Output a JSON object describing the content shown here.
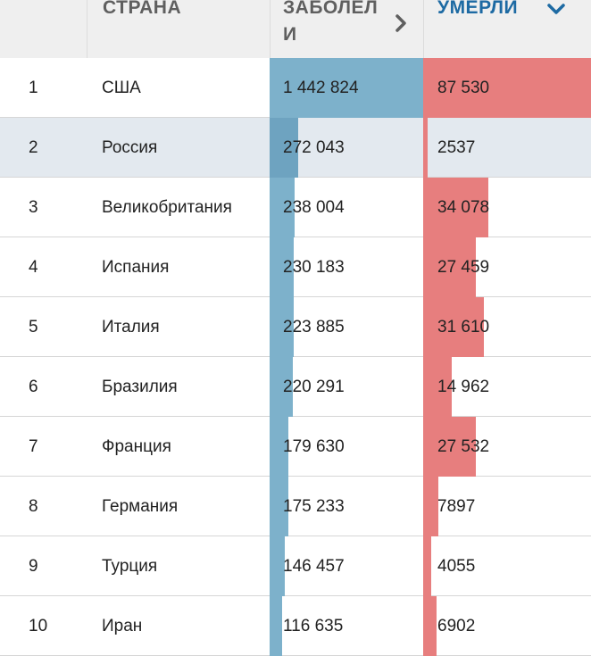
{
  "header": {
    "country_label": "СТРАНА",
    "cases_label": "ЗАБОЛЕЛИ",
    "deaths_label": "УМЕРЛИ",
    "cases_sort_icon": "chevron-right-icon",
    "deaths_sort_icon": "chevron-down-icon"
  },
  "colors": {
    "cases_bar": "#7db1cb",
    "deaths_bar": "#e77e7e",
    "active_sort": "#1d6aa3",
    "highlight_row": "#e3e9ef"
  },
  "max_values": {
    "cases": 1442824,
    "deaths": 87530
  },
  "rows": [
    {
      "rank": "1",
      "country": "США",
      "cases": "1 442 824",
      "deaths": "87 530"
    },
    {
      "rank": "2",
      "country": "Россия",
      "cases": "272 043",
      "deaths": "2537",
      "highlighted": true
    },
    {
      "rank": "3",
      "country": "Великобритания",
      "cases": "238 004",
      "deaths": "34 078"
    },
    {
      "rank": "4",
      "country": "Испания",
      "cases": "230 183",
      "deaths": "27 459"
    },
    {
      "rank": "5",
      "country": "Италия",
      "cases": "223 885",
      "deaths": "31 610"
    },
    {
      "rank": "6",
      "country": "Бразилия",
      "cases": "220 291",
      "deaths": "14 962"
    },
    {
      "rank": "7",
      "country": "Франция",
      "cases": "179 630",
      "deaths": "27 532"
    },
    {
      "rank": "8",
      "country": "Германия",
      "cases": "175 233",
      "deaths": "7897"
    },
    {
      "rank": "9",
      "country": "Турция",
      "cases": "146 457",
      "deaths": "4055"
    },
    {
      "rank": "10",
      "country": "Иран",
      "cases": "116 635",
      "deaths": "6902"
    }
  ]
}
